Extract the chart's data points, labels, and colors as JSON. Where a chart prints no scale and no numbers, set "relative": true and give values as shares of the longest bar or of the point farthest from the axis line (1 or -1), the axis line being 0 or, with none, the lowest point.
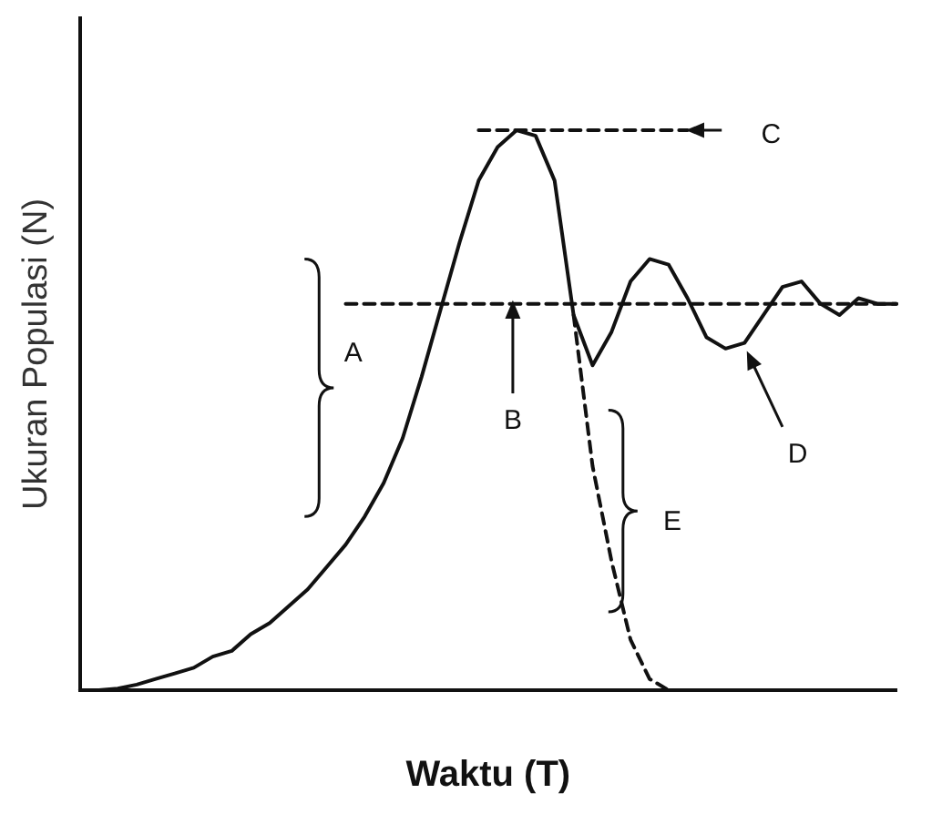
{
  "chart_data": {
    "type": "line",
    "relative": true,
    "xlabel": "Waktu (T)",
    "ylabel": "Ukuran Populasi (N)",
    "legend": false,
    "marker": "none",
    "grid": false,
    "categories": [
      null,
      null,
      null,
      null,
      null,
      null,
      null,
      null,
      null,
      null,
      null,
      null,
      null,
      null,
      null,
      null,
      null,
      null,
      null,
      null,
      null,
      null,
      null,
      null,
      null,
      null,
      null,
      null,
      null,
      null,
      null,
      null,
      null,
      null,
      null,
      null,
      null,
      null,
      null,
      null,
      null,
      null,
      null,
      null
    ],
    "series": [
      {
        "color": "#111111",
        "line_style": "solid",
        "values": [
          0,
          0,
          0.003,
          0.01,
          0.02,
          0.03,
          0.04,
          0.06,
          0.07,
          0.1,
          0.12,
          0.15,
          0.18,
          0.22,
          0.26,
          0.31,
          0.37,
          0.45,
          0.56,
          0.68,
          0.8,
          0.91,
          0.97,
          1,
          0.99,
          0.91,
          0.67,
          0.58,
          0.64,
          0.73,
          0.77,
          0.76,
          0.7,
          0.63,
          0.61,
          0.62,
          0.67,
          0.72,
          0.73,
          0.69,
          0.67,
          0.7,
          0.69,
          0.69
        ]
      },
      {
        "color": "#111111",
        "line_style": "dashed",
        "values": [
          null,
          null,
          null,
          null,
          null,
          null,
          null,
          null,
          null,
          null,
          null,
          null,
          null,
          null,
          null,
          null,
          null,
          null,
          null,
          null,
          null,
          null,
          null,
          null,
          null,
          null,
          0.67,
          0.4,
          0.23,
          0.09,
          0.02,
          0,
          null,
          null,
          null,
          null,
          null,
          null,
          null,
          null,
          null,
          null,
          null,
          null
        ]
      },
      {
        "color": "#111111",
        "line_style": "dashed",
        "values": [
          null,
          null,
          null,
          null,
          null,
          null,
          null,
          null,
          null,
          null,
          null,
          null,
          null,
          null,
          0.69,
          0.69,
          0.69,
          0.69,
          0.69,
          0.69,
          0.69,
          0.69,
          0.69,
          0.69,
          0.69,
          0.69,
          0.69,
          0.69,
          0.69,
          0.69,
          0.69,
          0.69,
          0.69,
          0.69,
          0.69,
          0.69,
          0.69,
          0.69,
          0.69,
          0.69,
          0.69,
          0.69,
          0.69,
          0.69
        ]
      },
      {
        "color": "#111111",
        "line_style": "dashed",
        "values": [
          null,
          null,
          null,
          null,
          null,
          null,
          null,
          null,
          null,
          null,
          null,
          null,
          null,
          null,
          null,
          null,
          null,
          null,
          null,
          null,
          null,
          1,
          1,
          1,
          1,
          1,
          1,
          1,
          1,
          1,
          1,
          1,
          1,
          null,
          null,
          null,
          null,
          null,
          null,
          null,
          null,
          null,
          null,
          null
        ]
      }
    ],
    "annotations": [
      "A",
      "B",
      "C",
      "D",
      "E"
    ]
  }
}
